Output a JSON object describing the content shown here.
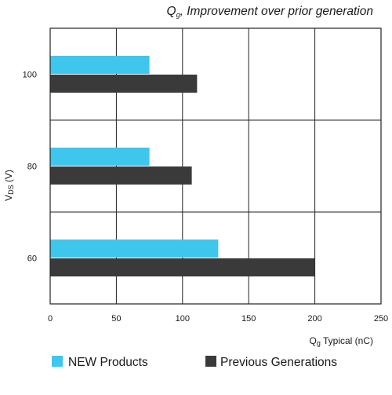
{
  "chart_data": {
    "type": "bar",
    "orientation": "horizontal",
    "title_main": "Q",
    "title_sub": "g",
    "title_rest": ", Improvement over prior generation",
    "categories": [
      "100",
      "80",
      "60"
    ],
    "series": [
      {
        "name": "NEW Products",
        "color": "#3ec6ec",
        "values": [
          75,
          75,
          127
        ]
      },
      {
        "name": "Previous Generations",
        "color": "#3a3a3a",
        "values": [
          111,
          107,
          200
        ]
      }
    ],
    "xlim": [
      0,
      250
    ],
    "xticks": [
      "0",
      "50",
      "100",
      "150",
      "200",
      "250"
    ],
    "xtick_values": [
      0,
      50,
      100,
      150,
      200,
      250
    ],
    "xlabel_main": "Q",
    "xlabel_sub": "g",
    "xlabel_rest": " Typical (nC)",
    "ylabel_main": "V",
    "ylabel_sub": "DS",
    "ylabel_rest": " (V)",
    "grid": true,
    "legend_position": "bottom"
  }
}
